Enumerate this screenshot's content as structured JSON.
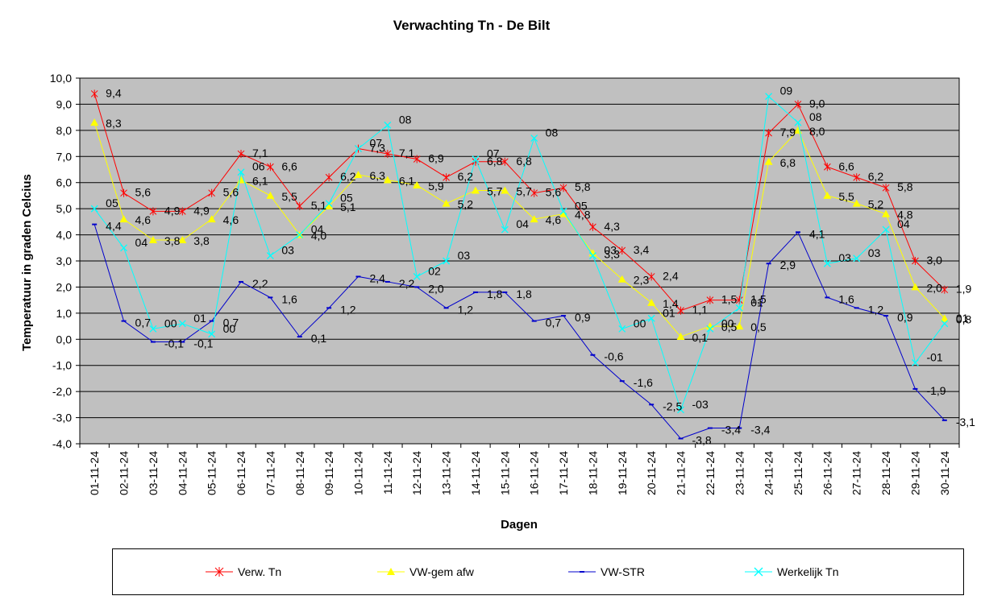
{
  "chart_data": {
    "type": "line",
    "title": "Verwachting Tn - De Bilt",
    "xlabel": "Dagen",
    "ylabel": "Temperatuur in graden Celcius",
    "ylim": [
      -4,
      10
    ],
    "ytick_step": 1,
    "y_tick_labels": [
      "-4,0",
      "-3,0",
      "-2,0",
      "-1,0",
      "0,0",
      "1,0",
      "2,0",
      "3,0",
      "4,0",
      "5,0",
      "6,0",
      "7,0",
      "8,0",
      "9,0",
      "10,0"
    ],
    "negative_tick_color": "#0000cc",
    "grid": true,
    "plot_background": "#c0c0c0",
    "legend_position": "bottom",
    "categories": [
      "01-11-24",
      "02-11-24",
      "03-11-24",
      "04-11-24",
      "05-11-24",
      "06-11-24",
      "07-11-24",
      "08-11-24",
      "09-11-24",
      "10-11-24",
      "11-11-24",
      "12-11-24",
      "13-11-24",
      "14-11-24",
      "15-11-24",
      "16-11-24",
      "17-11-24",
      "18-11-24",
      "19-11-24",
      "20-11-24",
      "21-11-24",
      "22-11-24",
      "23-11-24",
      "24-11-24",
      "25-11-24",
      "26-11-24",
      "27-11-24",
      "28-11-24",
      "29-11-24",
      "30-11-24"
    ],
    "series": [
      {
        "name": "Verw. Tn",
        "color": "#ff0000",
        "marker": "asterisk",
        "values": [
          9.4,
          5.6,
          4.9,
          4.9,
          5.6,
          7.1,
          6.6,
          5.1,
          6.2,
          7.3,
          7.1,
          6.9,
          6.2,
          6.8,
          6.8,
          5.6,
          5.8,
          4.3,
          3.4,
          2.4,
          1.1,
          1.5,
          1.5,
          7.9,
          9.0,
          6.6,
          6.2,
          5.8,
          3.0,
          1.9
        ],
        "labels": [
          "9,4",
          "5,6",
          "4,9",
          "4,9",
          "5,6",
          "7,1",
          "6,6",
          "5,1",
          "6,2",
          "7,3",
          "7,1",
          "6,9",
          "6,2",
          "6,8",
          "6,8",
          "5,6",
          "5,8",
          "4,3",
          "3,4",
          "2,4",
          "1,1",
          "1,5",
          "1,5",
          "7,9",
          "9,0",
          "6,6",
          "6,2",
          "5,8",
          "3,0",
          "1,9"
        ]
      },
      {
        "name": "VW-gem afw",
        "color": "#ffff00",
        "marker": "triangle",
        "values": [
          8.3,
          4.6,
          3.8,
          3.8,
          4.6,
          6.1,
          5.5,
          4.0,
          5.1,
          6.3,
          6.1,
          5.9,
          5.2,
          5.7,
          5.7,
          4.6,
          4.8,
          3.3,
          2.3,
          1.4,
          0.1,
          0.5,
          0.5,
          6.8,
          8.0,
          5.5,
          5.2,
          4.8,
          2.0,
          0.8
        ],
        "labels": [
          "8,3",
          "4,6",
          "3,8",
          "3,8",
          "4,6",
          "6,1",
          "5,5",
          "4,0",
          "5,1",
          "6,3",
          "6,1",
          "5,9",
          "5,2",
          "5,7",
          "5,7",
          "4,6",
          "4,8",
          "3,3",
          "2,3",
          "1,4",
          "0,1",
          "0,5",
          "0,5",
          "6,8",
          "8,0",
          "5,5",
          "5,2",
          "4,8",
          "2,0",
          "0,8"
        ]
      },
      {
        "name": "VW-STR",
        "color": "#0000cc",
        "marker": "dash",
        "values": [
          4.4,
          0.7,
          -0.1,
          -0.1,
          0.7,
          2.2,
          1.6,
          0.1,
          1.2,
          2.4,
          2.2,
          2.0,
          1.2,
          1.8,
          1.8,
          0.7,
          0.9,
          -0.6,
          -1.6,
          -2.5,
          -3.8,
          -3.4,
          -3.4,
          2.9,
          4.1,
          1.6,
          1.2,
          0.9,
          -1.9,
          -3.1
        ],
        "labels": [
          "4,4",
          "0,7",
          "-0,1",
          "-0,1",
          "0,7",
          "2,2",
          "1,6",
          "0,1",
          "1,2",
          "2,4",
          "2,2",
          "2,0",
          "1,2",
          "1,8",
          "1,8",
          "0,7",
          "0,9",
          "-0,6",
          "-1,6",
          "-2,5",
          "-3,8",
          "-3,4",
          "-3,4",
          "2,9",
          "4,1",
          "1,6",
          "1,2",
          "0,9",
          "-1,9",
          "-3,1"
        ]
      },
      {
        "name": "Werkelijk Tn",
        "color": "#00ffff",
        "marker": "x",
        "values": [
          5.0,
          3.5,
          0.4,
          0.6,
          0.2,
          6.4,
          3.2,
          4.0,
          5.2,
          7.3,
          8.2,
          2.4,
          3.0,
          6.9,
          4.2,
          7.7,
          4.9,
          3.2,
          0.4,
          0.8,
          -2.7,
          0.4,
          1.2,
          9.3,
          8.3,
          2.9,
          3.1,
          4.2,
          -0.9,
          0.6
        ],
        "labels": [
          "05",
          "04",
          "00",
          "01",
          "00",
          "06",
          "03",
          "04",
          "05",
          "07",
          "08",
          "02",
          "03",
          "07",
          "04",
          "08",
          "05",
          "03",
          "00",
          "01",
          "-03",
          "00",
          "01",
          "09",
          "08",
          "03",
          "03",
          "04",
          "-01",
          "01"
        ]
      }
    ]
  }
}
